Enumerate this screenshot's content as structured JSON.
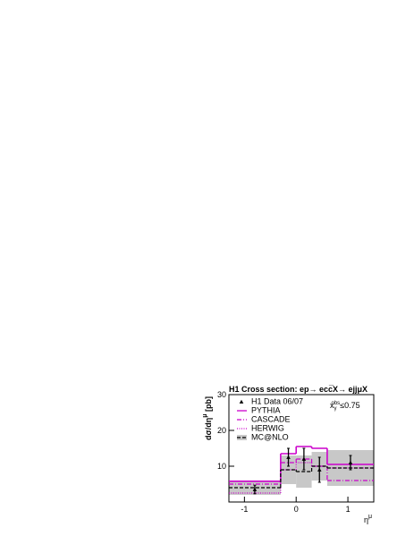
{
  "chart_data": {
    "type": "histogram",
    "title": "H1 Cross section: ep→ ecc̅X→ ejjμX",
    "y_label": {
      "base": "dσ/dη",
      "sup": "μ",
      "rest": " [pb]"
    },
    "x_label": {
      "base": "η",
      "sup": "μ"
    },
    "annotation": {
      "base": "x",
      "sub": "γ",
      "sup": "obs",
      "rest": "≤0.75"
    },
    "bins": [
      -1.3,
      -0.3,
      0,
      0.3,
      0.6,
      1.5
    ],
    "xlim": [
      -1.3,
      1.5
    ],
    "ylim": [
      0,
      30
    ],
    "xticks": [
      -1,
      0,
      1
    ],
    "yticks": [
      10,
      20,
      30
    ],
    "data": {
      "name": "H1 Data 06/07",
      "color": "#000000",
      "x": [
        -0.8,
        -0.15,
        0.15,
        0.45,
        1.05
      ],
      "values": [
        3.5,
        12.5,
        12,
        9,
        11
      ],
      "errors": [
        1.2,
        2.5,
        3,
        3.5,
        2
      ]
    },
    "series": [
      {
        "name": "PYTHIA",
        "color": "#cc00cc",
        "style": "solid",
        "values": [
          5.8,
          13.5,
          15.5,
          15,
          10.5
        ]
      },
      {
        "name": "CASCADE",
        "color": "#cc00cc",
        "style": "dashdot",
        "values": [
          5,
          11,
          12,
          10,
          6
        ]
      },
      {
        "name": "HERWIG",
        "color": "#cc00cc",
        "style": "dotted",
        "values": [
          2.5,
          9,
          11,
          10,
          9.5
        ]
      },
      {
        "name": "MC@NLO",
        "color": "#000000",
        "style": "dashed",
        "band_color": "#c8c8c8",
        "values": [
          4,
          9,
          8.5,
          10,
          9.5
        ],
        "errors": [
          2,
          4,
          4.5,
          4,
          5
        ]
      }
    ]
  }
}
